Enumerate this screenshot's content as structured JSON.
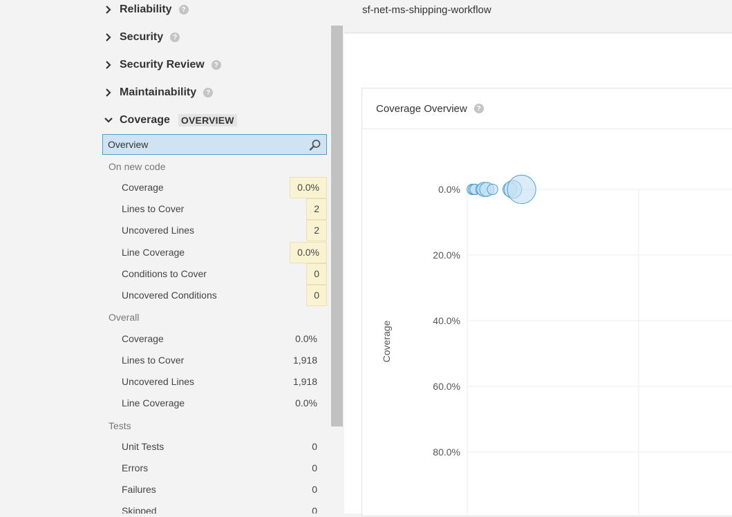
{
  "sidebar": {
    "domains": [
      {
        "label": "Reliability",
        "expanded": false
      },
      {
        "label": "Security",
        "expanded": false
      },
      {
        "label": "Security Review",
        "expanded": false
      },
      {
        "label": "Maintainability",
        "expanded": false
      },
      {
        "label": "Coverage",
        "expanded": true,
        "badge": "OVERVIEW"
      }
    ],
    "selected_item": "Overview",
    "groups": {
      "new_code": {
        "label": "On new code",
        "metrics": [
          {
            "label": "Coverage",
            "value": "0.0%"
          },
          {
            "label": "Lines to Cover",
            "value": "2"
          },
          {
            "label": "Uncovered Lines",
            "value": "2"
          },
          {
            "label": "Line Coverage",
            "value": "0.0%"
          },
          {
            "label": "Conditions to Cover",
            "value": "0"
          },
          {
            "label": "Uncovered Conditions",
            "value": "0"
          }
        ]
      },
      "overall": {
        "label": "Overall",
        "metrics": [
          {
            "label": "Coverage",
            "value": "0.0%"
          },
          {
            "label": "Lines to Cover",
            "value": "1,918"
          },
          {
            "label": "Uncovered Lines",
            "value": "1,918"
          },
          {
            "label": "Line Coverage",
            "value": "0.0%"
          }
        ]
      },
      "tests": {
        "label": "Tests",
        "metrics": [
          {
            "label": "Unit Tests",
            "value": "0"
          },
          {
            "label": "Errors",
            "value": "0"
          },
          {
            "label": "Failures",
            "value": "0"
          },
          {
            "label": "Skipped",
            "value": "0"
          }
        ]
      }
    }
  },
  "header": {
    "project_name": "sf-net-ms-shipping-workflow"
  },
  "panel": {
    "title": "Coverage Overview"
  },
  "icons": {
    "help": "help-circle-icon",
    "search": "search-icon",
    "chevron_right": "chevron-right-icon",
    "chevron_down": "chevron-down-icon"
  },
  "colors": {
    "accent": "#4b9fd5",
    "selected_bg": "#cfe3f3",
    "highlight_bg": "#faf3d2",
    "bubble_fill": "#c3dff3",
    "bubble_stroke": "#4b9fd5"
  },
  "chart_data": {
    "type": "scatter",
    "ylabel": "Coverage",
    "y_ticks": [
      "0.0%",
      "20.0%",
      "40.0%",
      "60.0%",
      "80.0%"
    ],
    "ylim": [
      0,
      100
    ],
    "y_inverted": true,
    "grid": true,
    "points": [
      {
        "x": 1,
        "y": 0,
        "size": 1
      },
      {
        "x": 1.5,
        "y": 0,
        "size": 1
      },
      {
        "x": 2,
        "y": 0,
        "size": 1
      },
      {
        "x": 4,
        "y": 0,
        "size": 1
      },
      {
        "x": 5,
        "y": 0,
        "size": 2
      },
      {
        "x": 6,
        "y": 0,
        "size": 2
      },
      {
        "x": 8,
        "y": 0,
        "size": 1
      },
      {
        "x": 14,
        "y": 0,
        "size": 2
      },
      {
        "x": 15,
        "y": 0,
        "size": 3
      },
      {
        "x": 18,
        "y": 0,
        "size": 6
      }
    ]
  }
}
